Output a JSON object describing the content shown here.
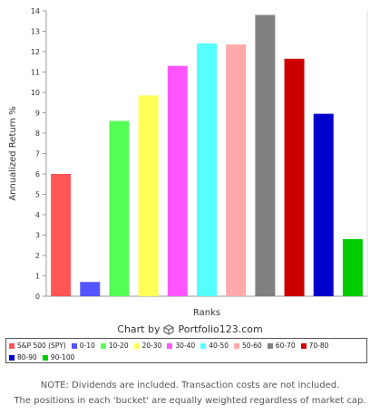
{
  "chart_data": {
    "type": "bar",
    "title": "",
    "xlabel": "Ranks",
    "ylabel": "Annualized Return %",
    "ylim": [
      0,
      14
    ],
    "yticks": [
      0,
      1,
      2,
      3,
      4,
      5,
      6,
      7,
      8,
      9,
      10,
      11,
      12,
      13,
      14
    ],
    "grid": false,
    "legend_position": "bottom",
    "categories": [
      "S&P 500 (SPY)",
      "0-10",
      "10-20",
      "20-30",
      "30-40",
      "40-50",
      "50-60",
      "60-70",
      "70-80",
      "80-90",
      "90-100"
    ],
    "values": [
      6.0,
      0.7,
      8.6,
      9.85,
      11.3,
      12.4,
      12.35,
      13.8,
      11.65,
      8.95,
      2.8
    ],
    "colors": [
      "#ff5555",
      "#5555ff",
      "#55ff55",
      "#ffff55",
      "#ff55ff",
      "#55ffff",
      "#ffaaaa",
      "#808080",
      "#cc0000",
      "#0000cc",
      "#00cc00"
    ]
  },
  "credit": {
    "prefix": "Chart by",
    "brand": "Portfolio123.com",
    "icon": "cube-icon"
  },
  "note": {
    "line1": "NOTE: Dividends are included. Transaction costs are not included.",
    "line2": "The positions in each 'bucket' are equally weighted regardless of market cap."
  }
}
